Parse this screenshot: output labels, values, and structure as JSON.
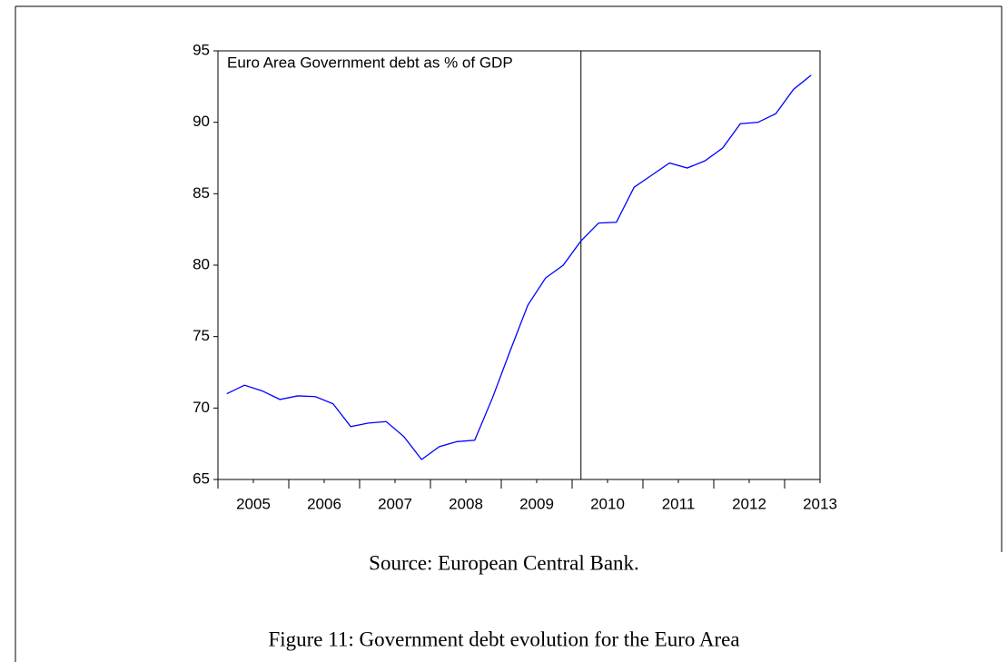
{
  "chart_data": {
    "type": "line",
    "annotation": "Euro Area Government debt as % of GDP",
    "x": [
      2005.125,
      2005.375,
      2005.625,
      2005.875,
      2006.125,
      2006.375,
      2006.625,
      2006.875,
      2007.125,
      2007.375,
      2007.625,
      2007.875,
      2008.125,
      2008.375,
      2008.625,
      2008.875,
      2009.125,
      2009.375,
      2009.625,
      2009.875,
      2010.125,
      2010.375,
      2010.625,
      2010.875,
      2011.125,
      2011.375,
      2011.625,
      2011.875,
      2012.125,
      2012.375,
      2012.625,
      2012.875,
      2013.125,
      2013.375
    ],
    "series": [
      {
        "color": "#0000ff",
        "values": [
          71.0,
          71.6,
          71.2,
          70.6,
          70.85,
          70.8,
          70.3,
          68.7,
          68.95,
          69.05,
          68.0,
          66.4,
          67.3,
          67.65,
          67.75,
          70.7,
          74.0,
          77.2,
          79.1,
          80.0,
          81.7,
          82.95,
          83.0,
          85.45,
          86.3,
          87.15,
          86.8,
          87.3,
          88.2,
          89.9,
          90.0,
          90.6,
          92.3,
          93.3
        ]
      }
    ],
    "xlim": [
      2005,
      2013.5
    ],
    "xticks": [
      {
        "value": 2005.5,
        "label": "2005"
      },
      {
        "value": 2006.5,
        "label": "2006"
      },
      {
        "value": 2007.5,
        "label": "2007"
      },
      {
        "value": 2008.5,
        "label": "2008"
      },
      {
        "value": 2009.5,
        "label": "2009"
      },
      {
        "value": 2010.5,
        "label": "2010"
      },
      {
        "value": 2011.5,
        "label": "2011"
      },
      {
        "value": 2012.5,
        "label": "2012"
      },
      {
        "value": 2013.5,
        "label": "2013"
      }
    ],
    "ylim": [
      65,
      95
    ],
    "yticks": [
      65,
      70,
      75,
      80,
      85,
      90,
      95
    ],
    "vline_x": 2010.125
  },
  "source": "Source: European Central Bank.",
  "caption": "Figure 11: Government debt evolution for the Euro Area"
}
